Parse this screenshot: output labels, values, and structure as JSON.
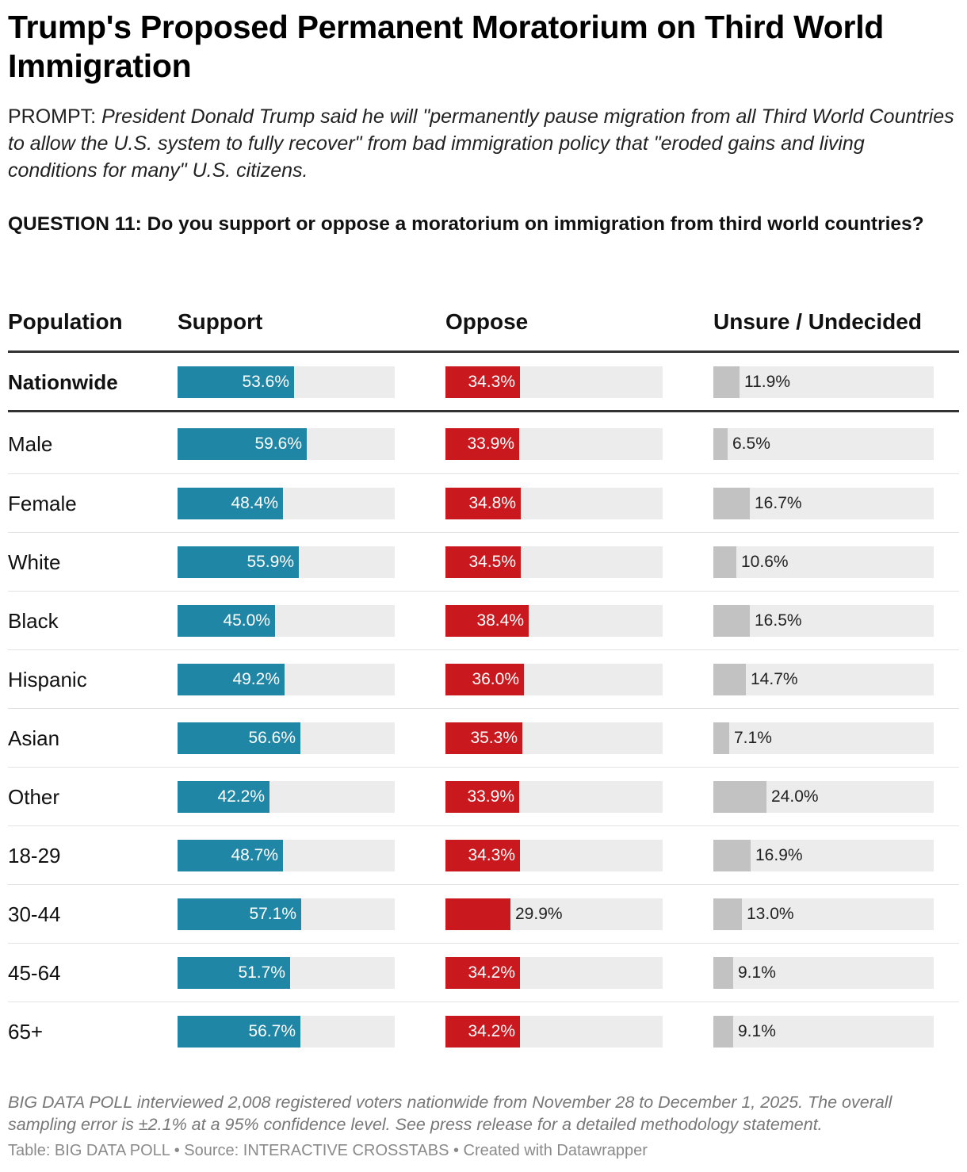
{
  "title": "Trump's Proposed Permanent Moratorium on Third World Immigration",
  "prompt_label": "PROMPT: ",
  "prompt_text": "President Donald Trump said he will \"permanently pause migration from all Third World Countries to allow the U.S. system to fully recover\" from bad immigration policy that \"eroded gains and living conditions for many\" U.S. citizens.",
  "question": "QUESTION 11: Do you support or oppose a moratorium on immigration from third world countries?",
  "colors": {
    "support": "#1f86a6",
    "oppose": "#c9191e",
    "unsure": "#c2c2c2",
    "track": "#ececec"
  },
  "chart_data": {
    "type": "table",
    "columns": [
      "Population",
      "Support",
      "Oppose",
      "Unsure / Undecided"
    ],
    "bar_max": {
      "support": 100,
      "oppose": 100,
      "unsure": 100
    },
    "rows": [
      {
        "population": "Nationwide",
        "support": 53.6,
        "oppose": 34.3,
        "unsure": 11.9,
        "support_label": "53.6%",
        "oppose_label": "34.3%",
        "unsure_label": "11.9%"
      },
      {
        "population": "Male",
        "support": 59.6,
        "oppose": 33.9,
        "unsure": 6.5,
        "support_label": "59.6%",
        "oppose_label": "33.9%",
        "unsure_label": "6.5%"
      },
      {
        "population": "Female",
        "support": 48.4,
        "oppose": 34.8,
        "unsure": 16.7,
        "support_label": "48.4%",
        "oppose_label": "34.8%",
        "unsure_label": "16.7%"
      },
      {
        "population": "White",
        "support": 55.9,
        "oppose": 34.5,
        "unsure": 10.6,
        "support_label": "55.9%",
        "oppose_label": "34.5%",
        "unsure_label": "10.6%"
      },
      {
        "population": "Black",
        "support": 45.0,
        "oppose": 38.4,
        "unsure": 16.5,
        "support_label": "45.0%",
        "oppose_label": "38.4%",
        "unsure_label": "16.5%"
      },
      {
        "population": "Hispanic",
        "support": 49.2,
        "oppose": 36.0,
        "unsure": 14.7,
        "support_label": "49.2%",
        "oppose_label": "36.0%",
        "unsure_label": "14.7%"
      },
      {
        "population": "Asian",
        "support": 56.6,
        "oppose": 35.3,
        "unsure": 7.1,
        "support_label": "56.6%",
        "oppose_label": "35.3%",
        "unsure_label": "7.1%"
      },
      {
        "population": "Other",
        "support": 42.2,
        "oppose": 33.9,
        "unsure": 24.0,
        "support_label": "42.2%",
        "oppose_label": "33.9%",
        "unsure_label": "24.0%"
      },
      {
        "population": "18-29",
        "support": 48.7,
        "oppose": 34.3,
        "unsure": 16.9,
        "support_label": "48.7%",
        "oppose_label": "34.3%",
        "unsure_label": "16.9%"
      },
      {
        "population": "30-44",
        "support": 57.1,
        "oppose": 29.9,
        "unsure": 13.0,
        "support_label": "57.1%",
        "oppose_label": "29.9%",
        "unsure_label": "13.0%"
      },
      {
        "population": "45-64",
        "support": 51.7,
        "oppose": 34.2,
        "unsure": 9.1,
        "support_label": "51.7%",
        "oppose_label": "34.2%",
        "unsure_label": "9.1%"
      },
      {
        "population": "65+",
        "support": 56.7,
        "oppose": 34.2,
        "unsure": 9.1,
        "support_label": "56.7%",
        "oppose_label": "34.2%",
        "unsure_label": "9.1%"
      }
    ]
  },
  "footnote": "BIG DATA POLL interviewed 2,008 registered voters nationwide from November 28 to December 1, 2025. The overall sampling error is ±2.1% at a 95% confidence level. See press release for a detailed methodology statement.",
  "credit": "Table: BIG DATA POLL • Source: INTERACTIVE CROSSTABS • Created with Datawrapper"
}
